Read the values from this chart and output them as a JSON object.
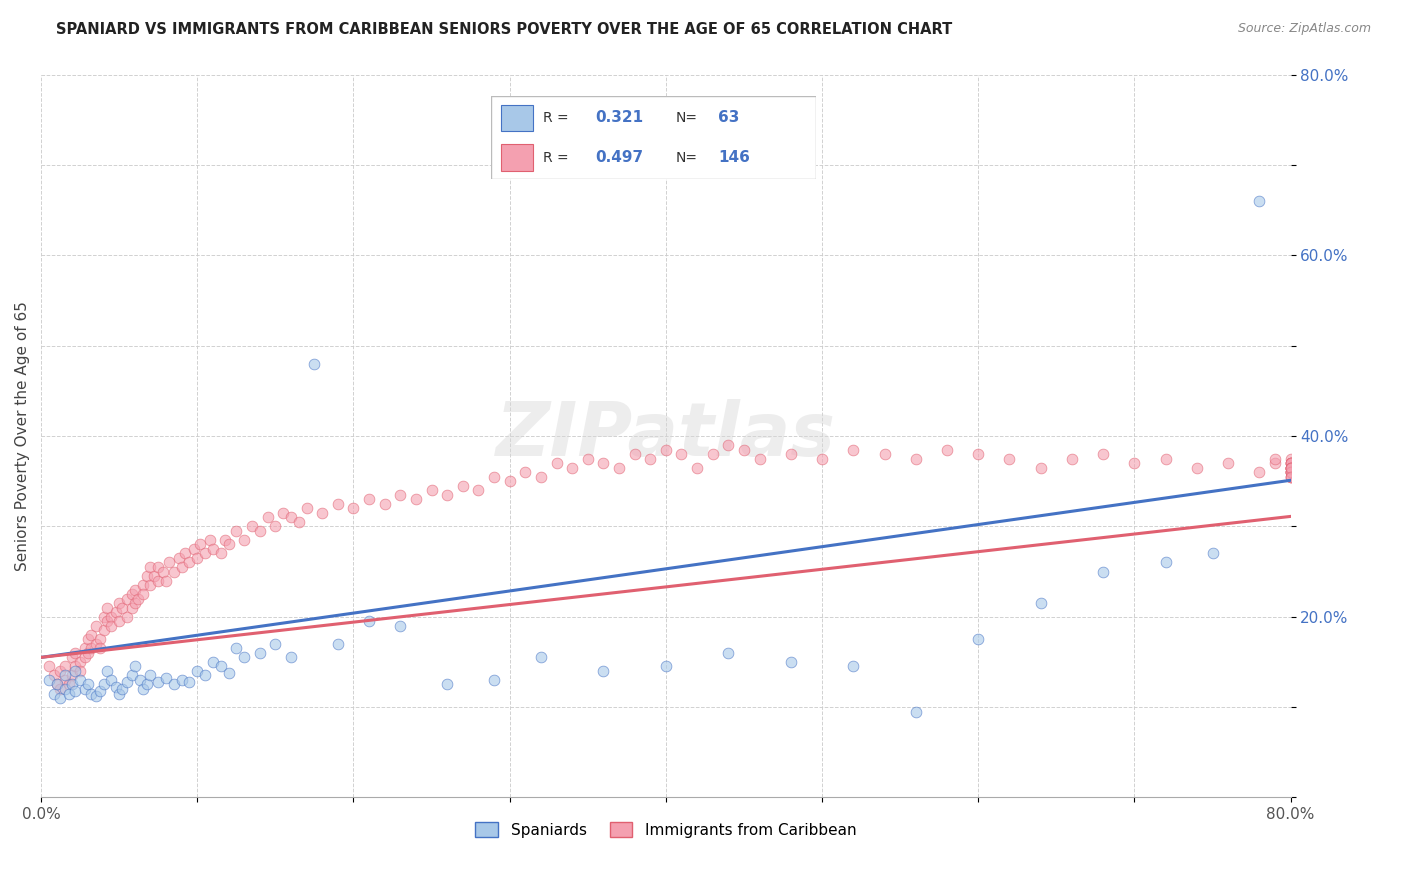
{
  "title": "SPANIARD VS IMMIGRANTS FROM CARIBBEAN SENIORS POVERTY OVER THE AGE OF 65 CORRELATION CHART",
  "source": "Source: ZipAtlas.com",
  "ylabel": "Seniors Poverty Over the Age of 65",
  "xlim": [
    0.0,
    0.8
  ],
  "ylim": [
    0.0,
    0.8
  ],
  "spaniards_color": "#a8c8e8",
  "caribbean_color": "#f4a0b0",
  "trend_blue": "#4472c4",
  "trend_pink": "#e06070",
  "background_color": "#ffffff",
  "R_spaniards": 0.321,
  "N_spaniards": 63,
  "R_caribbean": 0.497,
  "N_caribbean": 146,
  "marker_size": 60,
  "marker_alpha": 0.6,
  "sp_x": [
    0.005,
    0.008,
    0.01,
    0.012,
    0.015,
    0.015,
    0.018,
    0.02,
    0.022,
    0.022,
    0.025,
    0.028,
    0.03,
    0.032,
    0.035,
    0.038,
    0.04,
    0.042,
    0.045,
    0.048,
    0.05,
    0.052,
    0.055,
    0.058,
    0.06,
    0.063,
    0.065,
    0.068,
    0.07,
    0.075,
    0.08,
    0.085,
    0.09,
    0.095,
    0.1,
    0.105,
    0.11,
    0.115,
    0.12,
    0.125,
    0.13,
    0.14,
    0.15,
    0.16,
    0.175,
    0.19,
    0.21,
    0.23,
    0.26,
    0.29,
    0.32,
    0.36,
    0.4,
    0.44,
    0.48,
    0.52,
    0.56,
    0.6,
    0.64,
    0.68,
    0.72,
    0.75,
    0.78
  ],
  "sp_y": [
    0.13,
    0.115,
    0.125,
    0.11,
    0.135,
    0.12,
    0.115,
    0.125,
    0.118,
    0.14,
    0.13,
    0.12,
    0.125,
    0.115,
    0.112,
    0.118,
    0.125,
    0.14,
    0.13,
    0.122,
    0.115,
    0.12,
    0.128,
    0.135,
    0.145,
    0.13,
    0.12,
    0.125,
    0.135,
    0.128,
    0.132,
    0.125,
    0.13,
    0.128,
    0.14,
    0.135,
    0.15,
    0.145,
    0.138,
    0.165,
    0.155,
    0.16,
    0.17,
    0.155,
    0.48,
    0.17,
    0.195,
    0.19,
    0.125,
    0.13,
    0.155,
    0.14,
    0.145,
    0.16,
    0.15,
    0.145,
    0.095,
    0.175,
    0.215,
    0.25,
    0.26,
    0.27,
    0.66
  ],
  "carib_x": [
    0.005,
    0.008,
    0.01,
    0.012,
    0.012,
    0.015,
    0.015,
    0.018,
    0.02,
    0.02,
    0.022,
    0.022,
    0.025,
    0.025,
    0.028,
    0.028,
    0.03,
    0.03,
    0.032,
    0.032,
    0.035,
    0.035,
    0.038,
    0.038,
    0.04,
    0.04,
    0.042,
    0.042,
    0.045,
    0.045,
    0.048,
    0.05,
    0.05,
    0.052,
    0.055,
    0.055,
    0.058,
    0.058,
    0.06,
    0.06,
    0.062,
    0.065,
    0.065,
    0.068,
    0.07,
    0.07,
    0.072,
    0.075,
    0.075,
    0.078,
    0.08,
    0.082,
    0.085,
    0.088,
    0.09,
    0.092,
    0.095,
    0.098,
    0.1,
    0.102,
    0.105,
    0.108,
    0.11,
    0.115,
    0.118,
    0.12,
    0.125,
    0.13,
    0.135,
    0.14,
    0.145,
    0.15,
    0.155,
    0.16,
    0.165,
    0.17,
    0.18,
    0.19,
    0.2,
    0.21,
    0.22,
    0.23,
    0.24,
    0.25,
    0.26,
    0.27,
    0.28,
    0.29,
    0.3,
    0.31,
    0.32,
    0.33,
    0.34,
    0.35,
    0.36,
    0.37,
    0.38,
    0.39,
    0.4,
    0.41,
    0.42,
    0.43,
    0.44,
    0.45,
    0.46,
    0.48,
    0.5,
    0.52,
    0.54,
    0.56,
    0.58,
    0.6,
    0.62,
    0.64,
    0.66,
    0.68,
    0.7,
    0.72,
    0.74,
    0.76,
    0.78,
    0.79,
    0.79,
    0.8,
    0.8,
    0.8,
    0.8,
    0.8,
    0.8,
    0.8,
    0.8,
    0.8,
    0.8,
    0.8,
    0.8,
    0.8,
    0.8,
    0.8,
    0.8,
    0.8,
    0.8,
    0.8,
    0.8,
    0.8,
    0.8,
    0.8
  ],
  "carib_y": [
    0.145,
    0.135,
    0.125,
    0.14,
    0.12,
    0.13,
    0.145,
    0.125,
    0.135,
    0.155,
    0.145,
    0.16,
    0.15,
    0.14,
    0.165,
    0.155,
    0.16,
    0.175,
    0.165,
    0.18,
    0.17,
    0.19,
    0.175,
    0.165,
    0.185,
    0.2,
    0.195,
    0.21,
    0.2,
    0.19,
    0.205,
    0.195,
    0.215,
    0.21,
    0.2,
    0.22,
    0.21,
    0.225,
    0.215,
    0.23,
    0.22,
    0.235,
    0.225,
    0.245,
    0.235,
    0.255,
    0.245,
    0.24,
    0.255,
    0.25,
    0.24,
    0.26,
    0.25,
    0.265,
    0.255,
    0.27,
    0.26,
    0.275,
    0.265,
    0.28,
    0.27,
    0.285,
    0.275,
    0.27,
    0.285,
    0.28,
    0.295,
    0.285,
    0.3,
    0.295,
    0.31,
    0.3,
    0.315,
    0.31,
    0.305,
    0.32,
    0.315,
    0.325,
    0.32,
    0.33,
    0.325,
    0.335,
    0.33,
    0.34,
    0.335,
    0.345,
    0.34,
    0.355,
    0.35,
    0.36,
    0.355,
    0.37,
    0.365,
    0.375,
    0.37,
    0.365,
    0.38,
    0.375,
    0.385,
    0.38,
    0.365,
    0.38,
    0.39,
    0.385,
    0.375,
    0.38,
    0.375,
    0.385,
    0.38,
    0.375,
    0.385,
    0.38,
    0.375,
    0.365,
    0.375,
    0.38,
    0.37,
    0.375,
    0.365,
    0.37,
    0.36,
    0.37,
    0.375,
    0.365,
    0.37,
    0.375,
    0.365,
    0.37,
    0.36,
    0.365,
    0.37,
    0.36,
    0.365,
    0.37,
    0.36,
    0.365,
    0.37,
    0.36,
    0.365,
    0.355,
    0.36,
    0.365,
    0.355,
    0.36,
    0.365,
    0.355
  ]
}
